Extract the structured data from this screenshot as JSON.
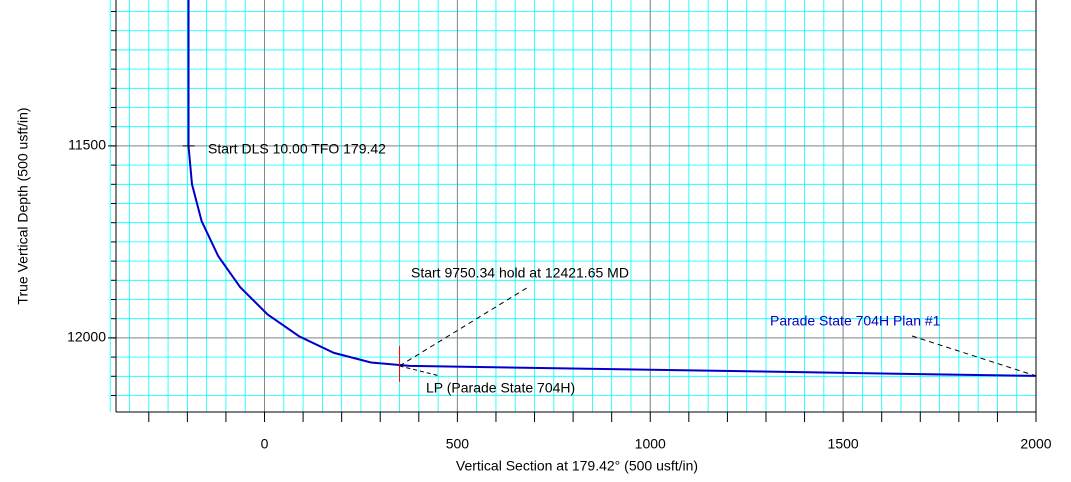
{
  "chart_data": {
    "type": "line",
    "xlabel": "Vertical Section at 179.42° (500 usft/in)",
    "ylabel": "True Vertical Depth (500 usft/in)",
    "xlim": [
      -385,
      2000
    ],
    "ylim": [
      12193,
      11120
    ],
    "y_inverted": true,
    "xticks": [
      0,
      500,
      1000,
      1500,
      2000
    ],
    "yticks": [
      11500,
      12000
    ],
    "grid": true,
    "series": [
      {
        "name": "Parade State 704H Plan #1",
        "color": "#0000cc",
        "x": [
          -197,
          -197,
          -188,
          -163,
          -120,
          -63,
          8,
          90,
          180,
          276,
          376,
          2000
        ],
        "values": [
          11120,
          11500,
          11600,
          11696,
          11787,
          11868,
          11939,
          11996,
          12039,
          12064,
          12073,
          12099
        ]
      }
    ],
    "annotations": [
      "Start DLS 10.00 TFO 179.42",
      "Start 9750.34 hold at 12421.65 MD",
      "LP (Parade State 704H)"
    ]
  }
}
